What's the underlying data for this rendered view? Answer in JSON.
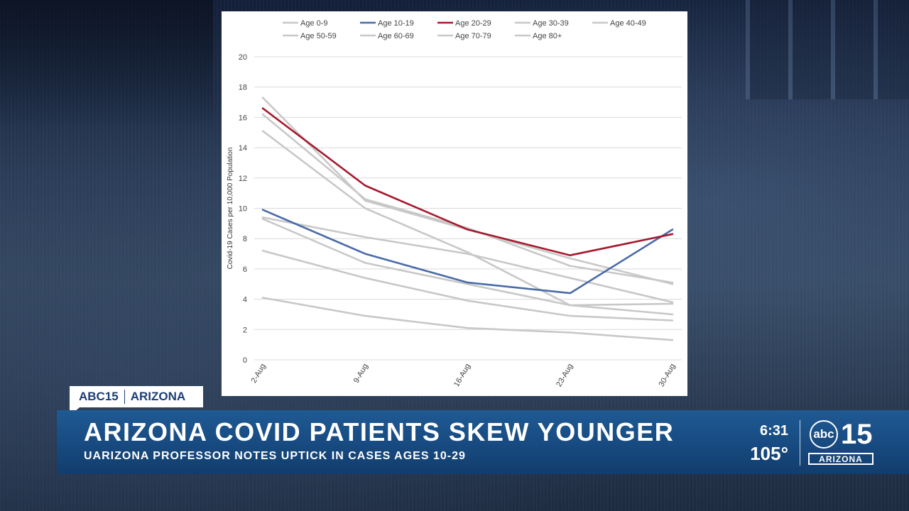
{
  "bug": {
    "station": "ABC15",
    "region": "ARIZONA"
  },
  "lower_third": {
    "headline": "ARIZONA COVID PATIENTS SKEW YOUNGER",
    "subhead": "UARIZONA PROFESSOR NOTES UPTICK IN CASES AGES 10-29"
  },
  "clock": {
    "time": "6:31",
    "temperature": "105°"
  },
  "logo": {
    "abc": "abc",
    "number": "15",
    "region": "ARIZONA"
  },
  "colors": {
    "grey_series": "#c8c8c8",
    "blue_series": "#4a6aa8",
    "red_series": "#a6192e",
    "banner": "#1a4f87"
  },
  "chart_data": {
    "type": "line",
    "x": [
      "2-Aug",
      "9-Aug",
      "16-Aug",
      "23-Aug",
      "30-Aug"
    ],
    "ylabel": "Covid-19 Cases per 10,000 Population",
    "ylim": [
      0,
      20
    ],
    "yticks": [
      0,
      2,
      4,
      6,
      8,
      10,
      12,
      14,
      16,
      18,
      20
    ],
    "grid": true,
    "legend": "top",
    "series": [
      {
        "name": "Age 0-9",
        "values": [
          4.1,
          2.9,
          2.1,
          1.8,
          1.3
        ],
        "color": "#c8c8c8"
      },
      {
        "name": "Age 10-19",
        "values": [
          9.9,
          7.0,
          5.1,
          4.4,
          8.6
        ],
        "color": "#4a6aa8"
      },
      {
        "name": "Age 20-29",
        "values": [
          16.6,
          11.5,
          8.6,
          6.9,
          8.3
        ],
        "color": "#a6192e"
      },
      {
        "name": "Age 30-39",
        "values": [
          17.3,
          10.5,
          8.6,
          6.7,
          5.0
        ],
        "color": "#c8c8c8"
      },
      {
        "name": "Age 40-49",
        "values": [
          16.2,
          10.6,
          8.7,
          6.2,
          5.1
        ],
        "color": "#c8c8c8"
      },
      {
        "name": "Age 50-59",
        "values": [
          15.1,
          10.0,
          7.1,
          3.6,
          3.7
        ],
        "color": "#c8c8c8"
      },
      {
        "name": "Age 60-69",
        "values": [
          9.4,
          8.1,
          7.0,
          5.4,
          3.8
        ],
        "color": "#c8c8c8"
      },
      {
        "name": "Age 70-79",
        "values": [
          9.3,
          6.4,
          5.0,
          3.6,
          3.0
        ],
        "color": "#c8c8c8"
      },
      {
        "name": "Age 80+",
        "values": [
          7.2,
          5.4,
          3.9,
          2.9,
          2.6
        ],
        "color": "#c8c8c8"
      }
    ]
  }
}
